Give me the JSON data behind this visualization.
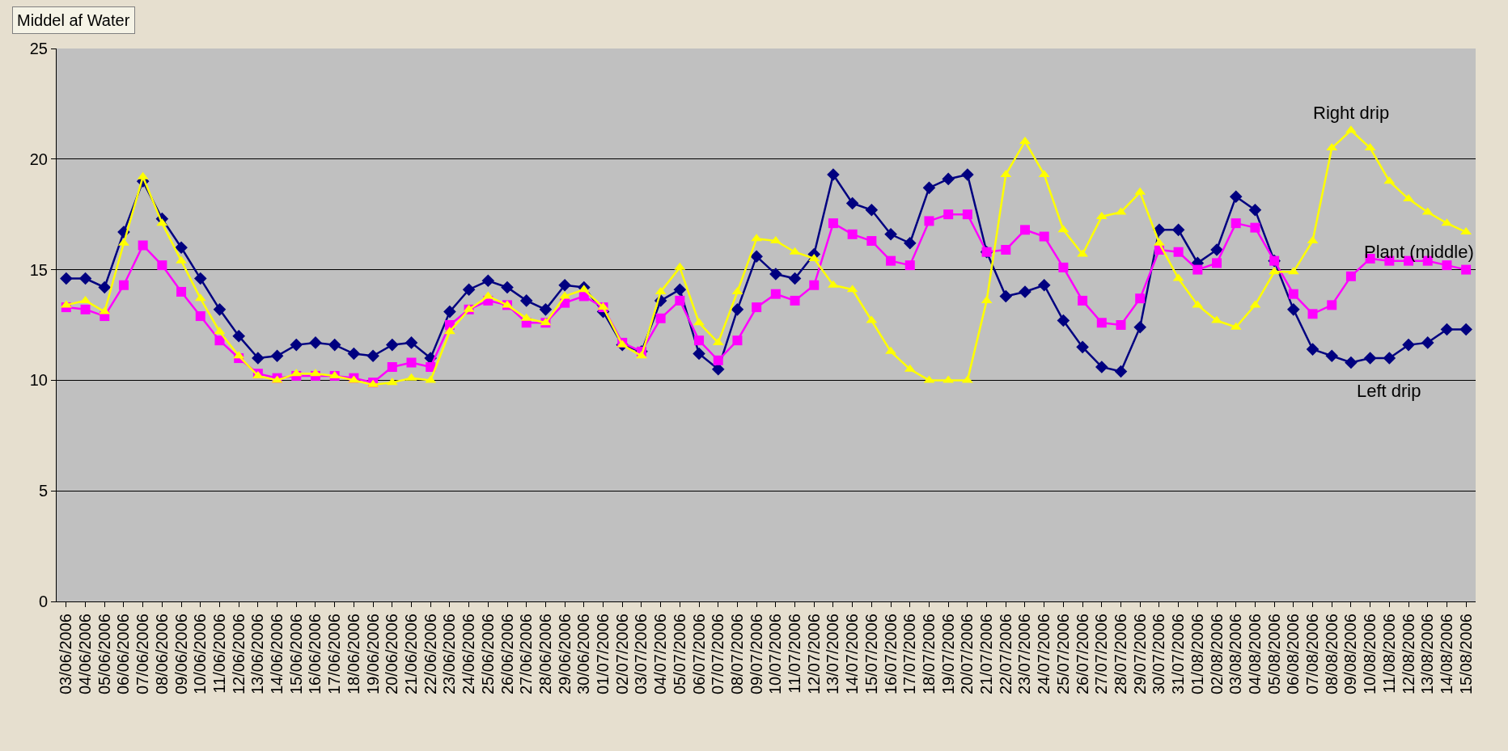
{
  "chart_data": {
    "type": "line",
    "title": "Middel af Water",
    "categories": [
      "03/06/2006",
      "04/06/2006",
      "05/06/2006",
      "06/06/2006",
      "07/06/2006",
      "08/06/2006",
      "09/06/2006",
      "10/06/2006",
      "11/06/2006",
      "12/06/2006",
      "13/06/2006",
      "14/06/2006",
      "15/06/2006",
      "16/06/2006",
      "17/06/2006",
      "18/06/2006",
      "19/06/2006",
      "20/06/2006",
      "21/06/2006",
      "22/06/2006",
      "23/06/2006",
      "24/06/2006",
      "25/06/2006",
      "26/06/2006",
      "27/06/2006",
      "28/06/2006",
      "29/06/2006",
      "30/06/2006",
      "01/07/2006",
      "02/07/2006",
      "03/07/2006",
      "04/07/2006",
      "05/07/2006",
      "06/07/2006",
      "07/07/2006",
      "08/07/2006",
      "09/07/2006",
      "10/07/2006",
      "11/07/2006",
      "12/07/2006",
      "13/07/2006",
      "14/07/2006",
      "15/07/2006",
      "16/07/2006",
      "17/07/2006",
      "18/07/2006",
      "19/07/2006",
      "20/07/2006",
      "21/07/2006",
      "22/07/2006",
      "23/07/2006",
      "24/07/2006",
      "25/07/2006",
      "26/07/2006",
      "27/07/2006",
      "28/07/2006",
      "29/07/2006",
      "30/07/2006",
      "31/07/2006",
      "01/08/2006",
      "02/08/2006",
      "03/08/2006",
      "04/08/2006",
      "05/08/2006",
      "06/08/2006",
      "07/08/2006",
      "08/08/2006",
      "09/08/2006",
      "10/08/2006",
      "11/08/2006",
      "12/08/2006",
      "13/08/2006",
      "14/08/2006",
      "15/08/2006"
    ],
    "series": [
      {
        "name": "Left drip",
        "color": "#000080",
        "marker": "diamond",
        "values": [
          14.6,
          14.6,
          14.2,
          16.7,
          19.0,
          17.3,
          16.0,
          14.6,
          13.2,
          12.0,
          11.0,
          11.1,
          11.6,
          11.7,
          11.6,
          11.2,
          11.1,
          11.6,
          11.7,
          11.0,
          13.1,
          14.1,
          14.5,
          14.2,
          13.6,
          13.2,
          14.3,
          14.2,
          13.1,
          11.6,
          11.3,
          13.6,
          14.1,
          11.2,
          10.5,
          13.2,
          15.6,
          14.8,
          14.6,
          15.7,
          19.3,
          18.0,
          17.7,
          16.6,
          16.2,
          18.7,
          19.1,
          19.3,
          15.8,
          13.8,
          14.0,
          14.3,
          12.7,
          11.5,
          10.6,
          10.4,
          12.4,
          16.8,
          16.8,
          15.3,
          15.9,
          18.3,
          17.7,
          15.4,
          13.2,
          11.4,
          11.1,
          10.8,
          11.0,
          11.0,
          11.6,
          11.7,
          12.3,
          12.3
        ]
      },
      {
        "name": "Plant (middle)",
        "color": "#ff00ff",
        "marker": "square",
        "values": [
          13.3,
          13.2,
          12.9,
          14.3,
          16.1,
          15.2,
          14.0,
          12.9,
          11.8,
          11.0,
          10.3,
          10.1,
          10.2,
          10.2,
          10.2,
          10.1,
          9.9,
          10.6,
          10.8,
          10.6,
          12.5,
          13.2,
          13.6,
          13.4,
          12.6,
          12.6,
          13.5,
          13.8,
          13.3,
          11.7,
          11.3,
          12.8,
          13.6,
          11.8,
          10.9,
          11.8,
          13.3,
          13.9,
          13.6,
          14.3,
          17.1,
          16.6,
          16.3,
          15.4,
          15.2,
          17.2,
          17.5,
          17.5,
          15.8,
          15.9,
          16.8,
          16.5,
          15.1,
          13.6,
          12.6,
          12.5,
          13.7,
          15.9,
          15.8,
          15.0,
          15.3,
          17.1,
          16.9,
          15.4,
          13.9,
          13.0,
          13.4,
          14.7,
          15.5,
          15.4,
          15.4,
          15.4,
          15.2,
          15.0
        ]
      },
      {
        "name": "Right drip",
        "color": "#ffff00",
        "marker": "triangle",
        "values": [
          13.4,
          13.6,
          13.1,
          16.2,
          19.2,
          17.1,
          15.4,
          13.7,
          12.2,
          11.1,
          10.2,
          10.0,
          10.3,
          10.3,
          10.2,
          10.0,
          9.8,
          9.9,
          10.1,
          10.0,
          12.2,
          13.2,
          13.8,
          13.4,
          12.8,
          12.6,
          13.8,
          14.1,
          13.3,
          11.6,
          11.1,
          14.0,
          15.1,
          12.6,
          11.7,
          14.0,
          16.4,
          16.3,
          15.8,
          15.5,
          14.3,
          14.1,
          12.7,
          11.3,
          10.5,
          10.0,
          10.0,
          10.0,
          13.6,
          19.3,
          20.8,
          19.3,
          16.8,
          15.7,
          17.4,
          17.6,
          18.5,
          16.2,
          14.6,
          13.4,
          12.7,
          12.4,
          13.4,
          14.9,
          14.9,
          16.3,
          20.5,
          21.3,
          20.5,
          19.0,
          18.2,
          17.6,
          17.1,
          16.7
        ]
      }
    ],
    "ylim": [
      0,
      25
    ],
    "yticks": [
      0,
      5,
      10,
      15,
      20,
      25
    ],
    "grid": "y",
    "legend": false,
    "line_style": "solid"
  }
}
